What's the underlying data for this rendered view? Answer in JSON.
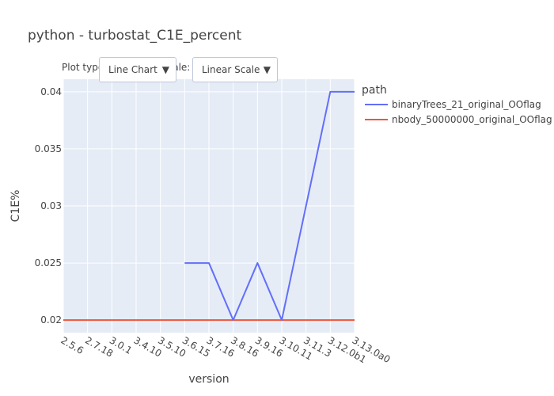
{
  "chart_data": {
    "type": "line",
    "title": "python - turbostat_C1E_percent",
    "xlabel": "version",
    "ylabel": "C1E%",
    "categories": [
      "2.5.6",
      "2.7.18",
      "3.0.1",
      "3.4.10",
      "3.5.10",
      "3.6.15",
      "3.7.16",
      "3.8.16",
      "3.9.16",
      "3.10.11",
      "3.11.3",
      "3.12.0b1",
      "3.13.0a0"
    ],
    "yticks": [
      0.02,
      0.025,
      0.03,
      0.035,
      0.04
    ],
    "ytick_labels": [
      "0.02",
      "0.025",
      "0.03",
      "0.035",
      "0.04"
    ],
    "ylim": [
      0.0189,
      0.0411
    ],
    "grid": true,
    "legend_title": "path",
    "legend_position": "top-right",
    "series": [
      {
        "name": "binaryTrees_21_original_OOflag",
        "color": "#636efa",
        "values": [
          null,
          null,
          null,
          null,
          null,
          0.025,
          0.025,
          0.02,
          0.025,
          0.02,
          0.03,
          0.04,
          0.04
        ]
      },
      {
        "name": "nbody_50000000_original_OOflag",
        "color": "#ef553b",
        "values": [
          0.02,
          0.02,
          0.02,
          0.02,
          0.02,
          0.02,
          0.02,
          0.02,
          0.02,
          0.02,
          0.02,
          0.02,
          0.02
        ]
      }
    ]
  },
  "controls": {
    "plot_type_label": "Plot type:",
    "plot_type_value": "Line Chart",
    "scale_label": "Scale:",
    "scale_value": "Linear Scale",
    "arrow": "▼"
  },
  "colors": {
    "plot_bg": "#e5ecf6",
    "grid": "#ffffff"
  }
}
